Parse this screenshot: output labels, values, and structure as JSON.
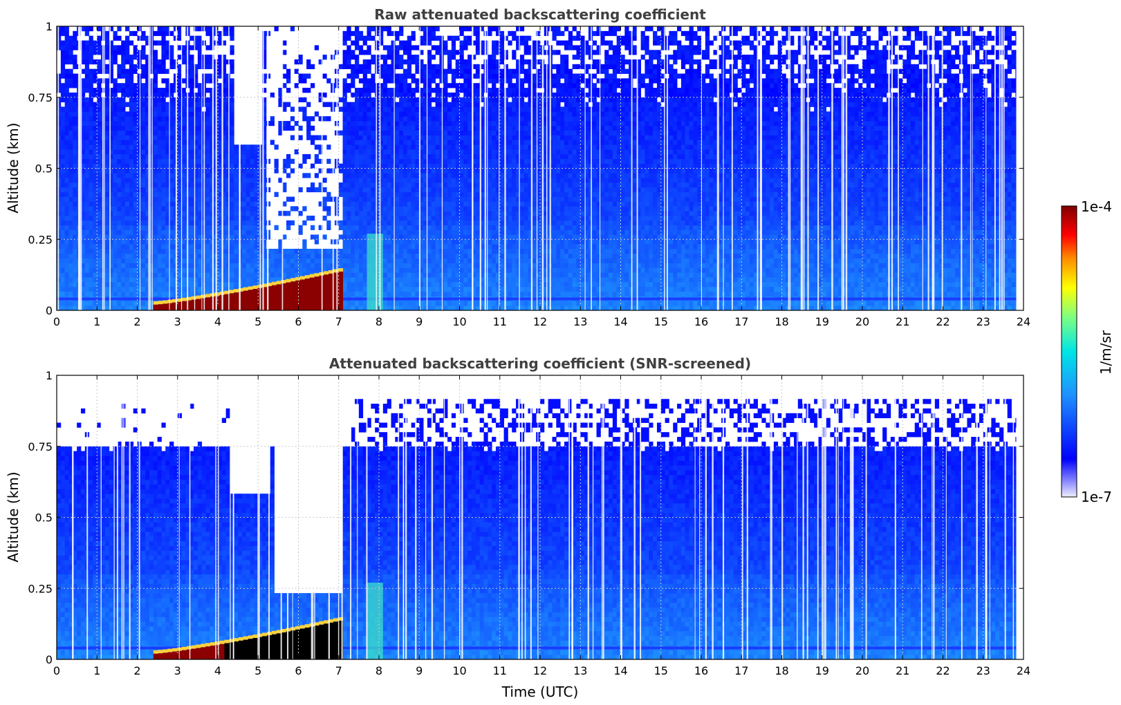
{
  "chart_data": [
    {
      "type": "heatmap",
      "title": "Raw attenuated backscattering coefficient",
      "xlabel": "",
      "ylabel": "Altitude (km)",
      "xlim": [
        0,
        24
      ],
      "ylim": [
        0,
        1
      ],
      "xticks": [
        "0",
        "1",
        "2",
        "3",
        "4",
        "5",
        "6",
        "7",
        "8",
        "9",
        "10",
        "11",
        "12",
        "13",
        "14",
        "15",
        "16",
        "17",
        "18",
        "19",
        "20",
        "21",
        "22",
        "23",
        "24"
      ],
      "yticks": [
        "0",
        "0.25",
        "0.5",
        "0.75",
        "1"
      ],
      "grid": true,
      "features": [
        {
          "desc": "high backscatter layer",
          "x_start": 2.4,
          "x_end": 7.1,
          "y_top_start": 0.02,
          "y_top_end": 0.14
        },
        {
          "desc": "no-data gap above 0.25 km",
          "x_start": 5.1,
          "x_end": 7.1,
          "y_bottom": 0.22
        }
      ]
    },
    {
      "type": "heatmap",
      "title": "Attenuated backscattering coefficient (SNR-screened)",
      "xlabel": "Time (UTC)",
      "ylabel": "Altitude (km)",
      "xlim": [
        0,
        24
      ],
      "ylim": [
        0,
        1
      ],
      "xticks": [
        "0",
        "1",
        "2",
        "3",
        "4",
        "5",
        "6",
        "7",
        "8",
        "9",
        "10",
        "11",
        "12",
        "13",
        "14",
        "15",
        "16",
        "17",
        "18",
        "19",
        "20",
        "21",
        "22",
        "23",
        "24"
      ],
      "yticks": [
        "0",
        "0.25",
        "0.5",
        "0.75",
        "1"
      ],
      "grid": true,
      "screen_top_km": 0.75,
      "features": [
        {
          "desc": "screened layer top",
          "x_start": 0,
          "x_end": 24,
          "y": 0.75
        },
        {
          "desc": "no-data gap",
          "x_start": 5.3,
          "x_end": 7.1,
          "y_bottom": 0.24
        }
      ]
    }
  ],
  "colorbar": {
    "label": "1/m/sr",
    "min_label": "1e-7",
    "max_label": "1e-4",
    "scale": "log",
    "colormap": [
      "#e8e8ff",
      "#0000ff",
      "#1e90ff",
      "#00ffff",
      "#7fff7f",
      "#ffff00",
      "#ff8000",
      "#ff0000",
      "#7f0000"
    ]
  }
}
